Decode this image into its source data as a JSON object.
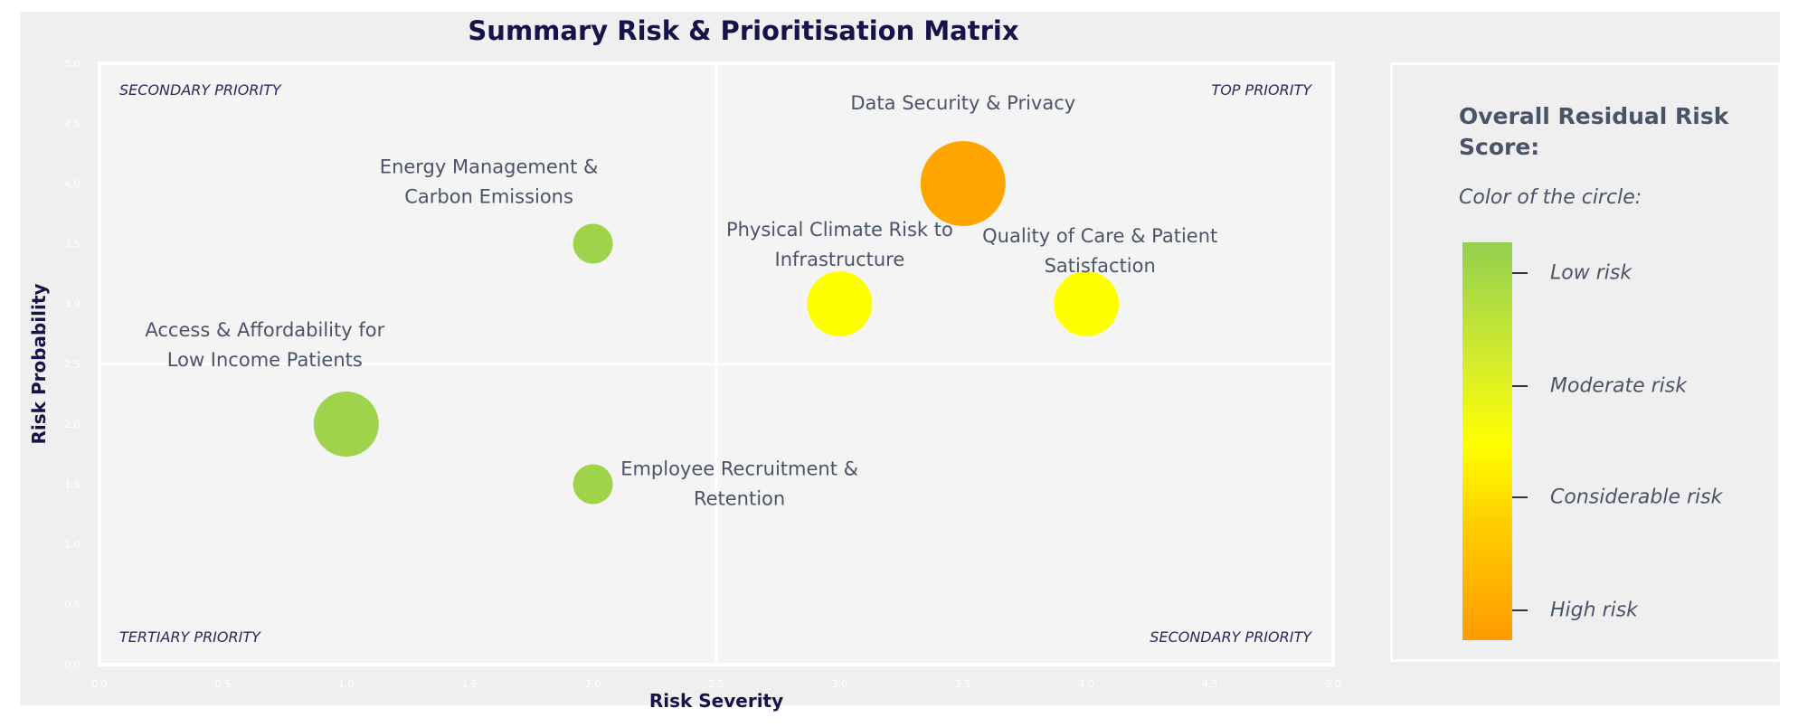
{
  "chart_data": {
    "type": "scatter",
    "title": "Summary Risk & Prioritisation Matrix",
    "xlabel": "Risk Severity",
    "ylabel": "Risk Probability",
    "xlim": [
      0,
      5
    ],
    "ylim": [
      0,
      5
    ],
    "xticks": [
      "0.0",
      "0.5",
      "1.0",
      "1.5",
      "2.0",
      "2.5",
      "3.0",
      "3.5",
      "4.0",
      "4.5",
      "5.0"
    ],
    "yticks": [
      "0.0",
      "0.5",
      "1.0",
      "1.5",
      "2.0",
      "2.5",
      "3.0",
      "3.5",
      "4.0",
      "4.5",
      "5.0"
    ],
    "quadrant_divider": {
      "x": 2.5,
      "y": 2.5
    },
    "quadrants": {
      "top_left": "SECONDARY PRIORITY",
      "top_right": "TOP PRIORITY",
      "bottom_left": "TERTIARY PRIORITY",
      "bottom_right": "SECONDARY PRIORITY"
    },
    "points": [
      {
        "label": [
          "Data Security & Privacy"
        ],
        "x": 3.5,
        "y": 4.0,
        "risk": "High risk",
        "color": "#FFA500",
        "size": "large"
      },
      {
        "label": [
          "Energy Management &",
          "Carbon Emissions"
        ],
        "x": 2.0,
        "y": 3.5,
        "risk": "Low risk",
        "color": "#9ED34B",
        "size": "small"
      },
      {
        "label": [
          "Physical Climate Risk to",
          "Infrastructure"
        ],
        "x": 3.0,
        "y": 3.0,
        "risk": "Moderate risk",
        "color": "#FFFF00",
        "size": "medium"
      },
      {
        "label": [
          "Quality of Care & Patient",
          "Satisfaction"
        ],
        "x": 4.0,
        "y": 3.0,
        "risk": "Moderate risk",
        "color": "#FFFF00",
        "size": "medium"
      },
      {
        "label": [
          "Access & Affordability for",
          "Low Income Patients"
        ],
        "x": 1.0,
        "y": 2.0,
        "risk": "Low risk",
        "color": "#9ED34B",
        "size": "medium"
      },
      {
        "label": [
          "Employee Recruitment &",
          "Retention"
        ],
        "x": 2.0,
        "y": 1.5,
        "risk": "Low risk",
        "color": "#9ED34B",
        "size": "small"
      }
    ],
    "grid": false
  },
  "legend": {
    "title": "Overall Residual Risk Score:",
    "subtitle": "Color of the circle:",
    "levels": [
      "Low risk",
      "Moderate risk",
      "Considerable risk",
      "High risk"
    ],
    "gradient": [
      "#92D050",
      "#FFFF00",
      "#FF9A00"
    ]
  }
}
